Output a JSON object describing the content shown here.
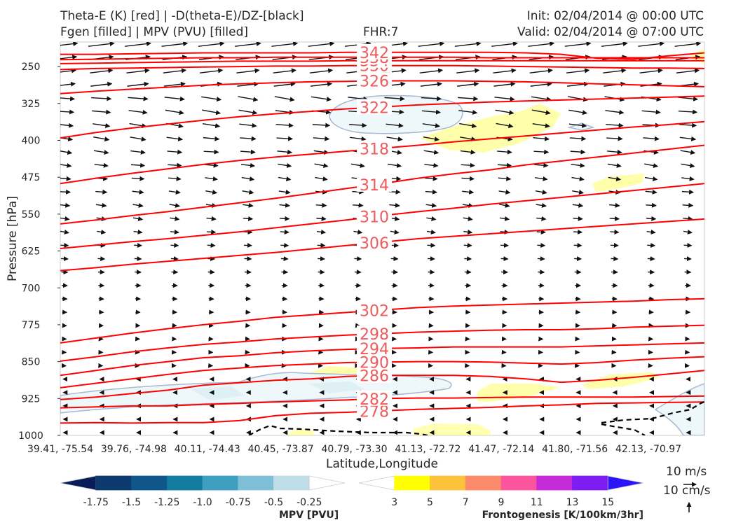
{
  "header": {
    "title_line1": "Theta-E (K) [red] | -D(theta-E)/DZ-[black]",
    "title_line2": "Fgen [filled] | MPV (PVU) [filled]",
    "fhr": "FHR:7",
    "init": "Init: 02/04/2014 @ 00:00 UTC",
    "valid": "Valid: 02/04/2014 @ 07:00 UTC"
  },
  "chart_data": {
    "type": "cross-section",
    "xlabel": "Latitude,Longitude",
    "ylabel": "Pressure [hPa]",
    "ylim": [
      1000,
      200
    ],
    "y_ticks": [
      250,
      325,
      400,
      475,
      550,
      625,
      700,
      775,
      850,
      925,
      1000
    ],
    "x_ticks": [
      "39.41, -75.54",
      "39.76, -74.98",
      "40.11, -74.43",
      "40.45, -73.87",
      "40.79, -73.30",
      "41.13, -72.72",
      "41.47, -72.14",
      "41.80, -71.56",
      "42.13, -70.97"
    ],
    "theta_e_contours": [
      {
        "label": "278",
        "p": [
          975,
          974,
          975,
          974,
          974,
          970,
          960,
          955,
          953,
          950,
          947,
          945,
          943,
          940,
          938,
          935,
          934,
          933,
          932
        ]
      },
      {
        "label": "282",
        "p": [
          944,
          942,
          940,
          940,
          937,
          935,
          932,
          930,
          928,
          925,
          924,
          924,
          923,
          922,
          922,
          922,
          922,
          921,
          920
        ]
      },
      {
        "label": "286",
        "p": [
          927,
          922,
          915,
          908,
          898,
          893,
          888,
          885,
          880,
          878,
          878,
          878,
          880,
          885,
          892,
          888,
          882,
          875,
          868
        ]
      },
      {
        "label": "290",
        "p": [
          903,
          894,
          885,
          876,
          868,
          863,
          858,
          855,
          852,
          851,
          850,
          850,
          851,
          853,
          855,
          852,
          847,
          843,
          840
        ]
      },
      {
        "label": "294",
        "p": [
          878,
          868,
          858,
          850,
          842,
          838,
          832,
          828,
          825,
          823,
          822,
          820,
          820,
          820,
          820,
          818,
          816,
          814,
          812
        ]
      },
      {
        "label": "298",
        "p": [
          849,
          840,
          830,
          822,
          815,
          810,
          804,
          800,
          796,
          793,
          790,
          788,
          786,
          785,
          785,
          783,
          780,
          778,
          776
        ]
      },
      {
        "label": "302",
        "p": [
          812,
          802,
          792,
          783,
          775,
          768,
          760,
          755,
          750,
          745,
          740,
          737,
          735,
          733,
          731,
          729,
          727,
          724,
          722
        ]
      },
      {
        "label": "306",
        "p": [
          665,
          659,
          652,
          646,
          640,
          634,
          628,
          621,
          614,
          607,
          600,
          595,
          590,
          585,
          580,
          575,
          570,
          565,
          560
        ]
      },
      {
        "label": "310",
        "p": [
          620,
          613,
          606,
          600,
          593,
          586,
          578,
          570,
          562,
          553,
          545,
          538,
          530,
          523,
          516,
          509,
          502,
          495,
          488
        ]
      },
      {
        "label": "314",
        "p": [
          570,
          562,
          553,
          545,
          536,
          527,
          518,
          508,
          498,
          488,
          477,
          468,
          460,
          450,
          442,
          434,
          426,
          418,
          410
        ]
      },
      {
        "label": "318",
        "p": [
          488,
          477,
          467,
          458,
          449,
          441,
          434,
          428,
          422,
          416,
          410,
          403,
          397,
          391,
          385,
          379,
          373,
          368,
          362
        ]
      },
      {
        "label": "322",
        "p": [
          395,
          384,
          375,
          367,
          359,
          352,
          346,
          341,
          336,
          332,
          328,
          325,
          322,
          320,
          318,
          316,
          314,
          312,
          310
        ]
      },
      {
        "label": "326",
        "p": [
          305,
          300,
          296,
          292,
          288,
          285,
          283,
          281,
          280,
          279,
          279,
          279,
          280,
          281,
          283,
          285,
          287,
          289,
          291
        ]
      },
      {
        "label": "330",
        "p": [
          256,
          254,
          253,
          252,
          251,
          250,
          249,
          249,
          248,
          248,
          248,
          248,
          249,
          250,
          251,
          252,
          253,
          253,
          254
        ]
      },
      {
        "label": "334",
        "p": [
          244,
          243,
          242,
          241,
          240,
          239,
          239,
          239,
          238,
          238,
          238,
          238,
          238,
          238,
          238,
          238,
          238,
          238,
          238
        ]
      },
      {
        "label": "338",
        "p": [
          236,
          235,
          234,
          233,
          232,
          232,
          231,
          231,
          231,
          231,
          231,
          231,
          232,
          232,
          232,
          232,
          232,
          232,
          232
        ]
      },
      {
        "label": "342",
        "p": [
          225,
          225,
          224,
          223,
          222,
          222,
          222,
          222,
          221,
          221,
          221,
          221,
          221,
          222,
          225,
          233,
          235,
          228,
          222
        ]
      }
    ],
    "colorbars": [
      {
        "label": "MPV [PVU]",
        "ticks": [
          "-1.75",
          "-1.5",
          "-1.25",
          "-1.0",
          "-0.75",
          "-0.5",
          "-0.25"
        ],
        "colors": [
          "#081d58",
          "#0c3a6e",
          "#10568a",
          "#127ba0",
          "#3e9fc0",
          "#7fbfd6",
          "#bfdde6",
          "#ffffff"
        ]
      },
      {
        "label": "Frontogenesis [K/100km/3hr]",
        "ticks": [
          "3",
          "5",
          "7",
          "9",
          "11",
          "13",
          "15"
        ],
        "colors": [
          "#ffffff",
          "#ffff00",
          "#fcc23b",
          "#fc8b6b",
          "#fb559e",
          "#c62bd8",
          "#7f1cf4",
          "#2a14fc"
        ]
      }
    ],
    "wind_scale": {
      "horizontal": "10 m/s",
      "vertical": "10 cm/s"
    }
  }
}
